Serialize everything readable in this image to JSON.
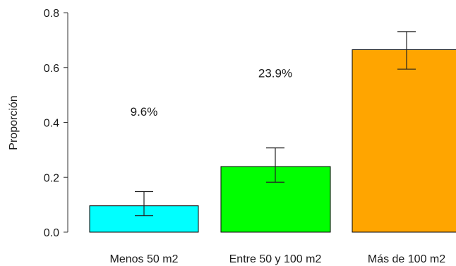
{
  "chart_data": {
    "type": "bar",
    "title": "",
    "xlabel": "",
    "ylabel": "Proporción",
    "ylim": [
      0,
      0.8
    ],
    "yticks": [
      "0.0",
      "0.2",
      "0.4",
      "0.6",
      "0.8"
    ],
    "categories": [
      "Menos 50 m2",
      "Entre 50 y 100 m2",
      "Más de 100 m2"
    ],
    "values": [
      0.096,
      0.239,
      0.665
    ],
    "error_low": [
      0.06,
      0.182,
      0.594
    ],
    "error_high": [
      0.148,
      0.307,
      0.731
    ],
    "labels": [
      "9.6%",
      "23.9%",
      ""
    ],
    "label_y": [
      0.44,
      0.58,
      null
    ],
    "colors": [
      "#00ffff",
      "#00ff00",
      "#ffa500"
    ],
    "grid": false,
    "legend": "none"
  }
}
